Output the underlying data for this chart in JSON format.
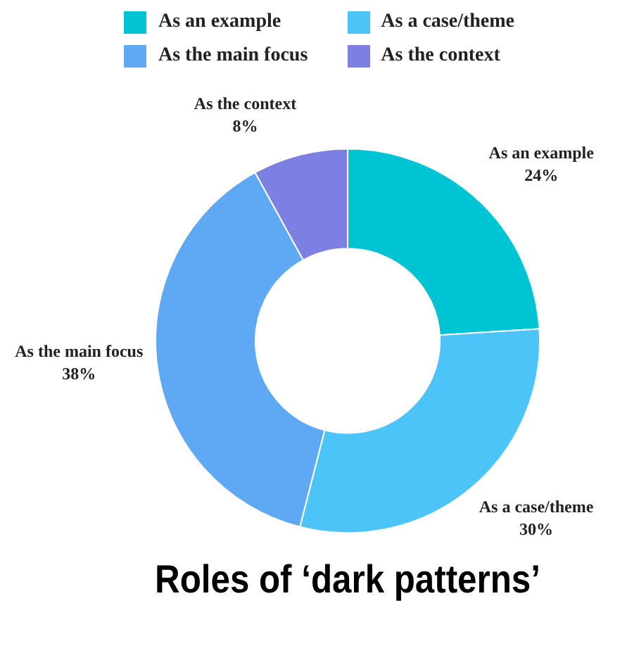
{
  "chart_data": {
    "type": "donut",
    "title": "Roles of ‘dark patterns’",
    "categories": [
      "As an example",
      "As a case/theme",
      "As the main focus",
      "As the context"
    ],
    "values": [
      24,
      30,
      38,
      8
    ],
    "value_labels": [
      "24%",
      "30%",
      "38%",
      "8%"
    ],
    "colors": [
      "#00c3d3",
      "#4cc4f8",
      "#5ea8f4",
      "#7b80e2"
    ],
    "legend": "top"
  }
}
